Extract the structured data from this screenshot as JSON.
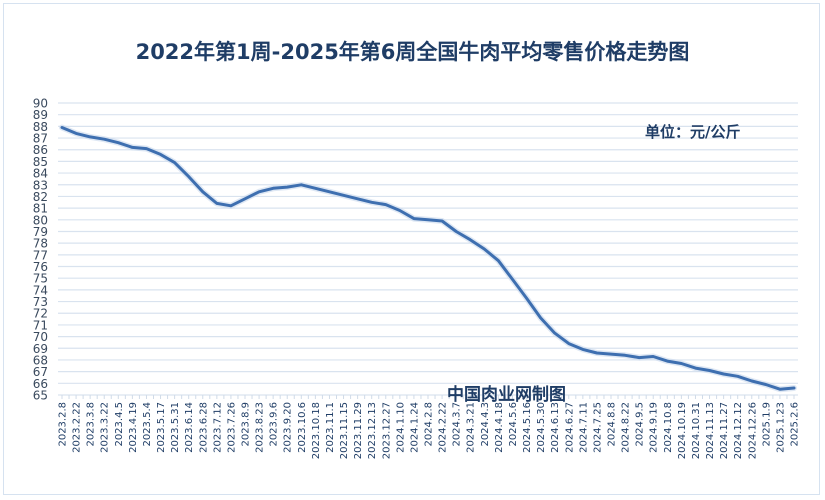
{
  "chart_data": {
    "type": "line",
    "title": "2022年第1周-2025年第6周全国牛肉平均零售价格走势图",
    "unit_label": "单位：元/公斤",
    "watermark": "中国肉业网制图",
    "xlabel": "",
    "ylabel": "",
    "ylim": [
      65,
      90
    ],
    "yticks": [
      65,
      66,
      67,
      68,
      69,
      70,
      71,
      72,
      73,
      74,
      75,
      76,
      77,
      78,
      79,
      80,
      81,
      82,
      83,
      84,
      85,
      86,
      87,
      88,
      89,
      90
    ],
    "grid": true,
    "legend": null,
    "line_color": "#3e6fb0",
    "categories": [
      "2023.2.8",
      "2023.2.22",
      "2023.3.8",
      "2023.3.22",
      "2023.4.5",
      "2023.4.19",
      "2023.5.4",
      "2023.5.17",
      "2023.5.31",
      "2023.6.14",
      "2023.6.28",
      "2023.7.12",
      "2023.7.26",
      "2023.8.9",
      "2023.8.23",
      "2023.9.6",
      "2023.9.20",
      "2023.10.6",
      "2023.10.18",
      "2023.11.1",
      "2023.11.15",
      "2023.11.29",
      "2023.12.13",
      "2023.12.27",
      "2024.1.10",
      "2024.1.24",
      "2024.2.8",
      "2024.2.22",
      "2024.3.7",
      "2024.3.21",
      "2024.4.3",
      "2024.4.18",
      "2024.5.6",
      "2024.5.16",
      "2024.5.30",
      "2024.6.13",
      "2024.6.27",
      "2024.7.11",
      "2024.7.25",
      "2024.8.8",
      "2024.8.22",
      "2024.9.5",
      "2024.9.19",
      "2024.10.8",
      "2024.10.19",
      "2024.10.31",
      "2024.11.13",
      "2024.11.27",
      "2024.12.12",
      "2024.12.26",
      "2025.1.9",
      "2025.1.23",
      "2025.2.6"
    ],
    "series": [
      {
        "name": "全国牛肉平均零售价格",
        "values": [
          87.9,
          87.4,
          87.1,
          86.9,
          86.6,
          86.2,
          86.1,
          85.6,
          84.9,
          83.7,
          82.4,
          81.4,
          81.2,
          81.8,
          82.4,
          82.7,
          82.8,
          83.0,
          82.7,
          82.4,
          82.1,
          81.8,
          81.5,
          81.3,
          80.8,
          80.1,
          80.0,
          79.9,
          79.0,
          78.3,
          77.5,
          76.5,
          74.9,
          73.3,
          71.6,
          70.3,
          69.4,
          68.9,
          68.6,
          68.5,
          68.4,
          68.2,
          68.3,
          67.9,
          67.7,
          67.3,
          67.1,
          66.8,
          66.6,
          66.2,
          65.9,
          65.5,
          65.6
        ]
      }
    ]
  }
}
